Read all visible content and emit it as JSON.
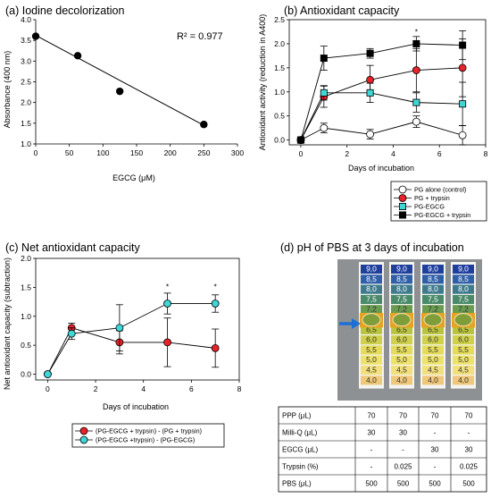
{
  "colors": {
    "red": "#e8222a",
    "cyan": "#3fd6d6",
    "black": "#000000",
    "white": "#ffffff"
  },
  "chart_data": [
    {
      "id": "a",
      "type": "scatter",
      "title": "(a) Iodine decolorization",
      "xlabel": "EGCG (μM)",
      "ylabel": "Absorbance (400 nm)",
      "xlim": [
        0,
        300
      ],
      "ylim": [
        1.0,
        4.0
      ],
      "xticks": [
        "0",
        "50",
        "100",
        "150",
        "200",
        "250",
        "300"
      ],
      "yticks": [
        "1.0",
        "1.5",
        "2.0",
        "2.5",
        "3.0",
        "3.5",
        "4.0"
      ],
      "annotation": "R² = 0.977",
      "points": [
        {
          "x": 0,
          "y": 3.6
        },
        {
          "x": 62.5,
          "y": 3.13
        },
        {
          "x": 125,
          "y": 2.27
        },
        {
          "x": 250,
          "y": 1.47
        }
      ],
      "fit": [
        {
          "x": 0,
          "y": 3.62
        },
        {
          "x": 250,
          "y": 1.45
        }
      ]
    },
    {
      "id": "b",
      "type": "line",
      "title": "(b) Antioxidant capacity",
      "xlabel": "Days of incubation",
      "ylabel": "Antioxidant activity (reduction in A400)",
      "xlim": [
        -0.5,
        8
      ],
      "ylim": [
        -0.1,
        2.5
      ],
      "xticks": [
        "0",
        "2",
        "4",
        "6",
        "8"
      ],
      "yticks": [
        "0.0",
        "0.5",
        "1.0",
        "1.5",
        "2.0",
        "2.5"
      ],
      "x": [
        0,
        1,
        3,
        5,
        7
      ],
      "annotations": [
        {
          "text": "*",
          "x": 5,
          "y": 2.27
        }
      ],
      "series": [
        {
          "name": "PG alone (control)",
          "marker": "circle",
          "fill": "#ffffff",
          "values": [
            0,
            0.25,
            0.12,
            0.38,
            0.1
          ],
          "errors": [
            0,
            0.1,
            0.1,
            0.12,
            0.2
          ]
        },
        {
          "name": "PG + trypsin",
          "marker": "circle",
          "fill": "#e8222a",
          "values": [
            0,
            0.9,
            1.25,
            1.45,
            1.5
          ],
          "errors": [
            0,
            0.22,
            0.3,
            0.45,
            0.6
          ]
        },
        {
          "name": "PG-EGCG",
          "marker": "square",
          "fill": "#3fd6d6",
          "values": [
            0,
            0.98,
            0.98,
            0.78,
            0.75
          ],
          "errors": [
            0,
            0.15,
            0.2,
            0.2,
            0.45
          ]
        },
        {
          "name": "PG-EGCG + trypsin",
          "marker": "square",
          "fill": "#000000",
          "values": [
            0,
            1.7,
            1.8,
            2.0,
            1.97
          ],
          "errors": [
            0,
            0.25,
            0.1,
            0.15,
            0.3
          ]
        }
      ]
    },
    {
      "id": "c",
      "type": "line",
      "title": "(c) Net antioxidant capacity",
      "xlabel": "Days of incubation",
      "ylabel": "Net antioxidant capacity (subtraction)",
      "xlim": [
        -0.5,
        8
      ],
      "ylim": [
        -0.1,
        2.0
      ],
      "xticks": [
        "0",
        "2",
        "4",
        "6",
        "8"
      ],
      "yticks": [
        "0.0",
        "0.5",
        "1.0",
        "1.5",
        "2.0"
      ],
      "x": [
        0,
        1,
        3,
        5,
        7
      ],
      "annotations": [
        {
          "text": "*",
          "x": 5,
          "y": 1.53
        },
        {
          "text": "*",
          "x": 7,
          "y": 1.53
        }
      ],
      "series": [
        {
          "name": "(PG-EGCG + trypsin) - (PG + trypsin)",
          "marker": "circle",
          "fill": "#e8222a",
          "values": [
            0,
            0.8,
            0.55,
            0.55,
            0.45
          ],
          "errors": [
            0,
            0.08,
            0.2,
            0.42,
            0.33
          ]
        },
        {
          "name": "(PG-EGCG +trypsin) - (PG-EGCG)",
          "marker": "circle",
          "fill": "#3fd6d6",
          "values": [
            0,
            0.7,
            0.8,
            1.22,
            1.22
          ],
          "errors": [
            0,
            0.1,
            0.4,
            0.18,
            0.15
          ]
        }
      ]
    }
  ],
  "panel_d": {
    "title": "(d) pH of PBS at 3 days of incubation",
    "ph_scale": [
      "9,0",
      "8,5",
      "8,0",
      "7,5",
      "7,2",
      "7,0",
      "6,5",
      "6,0",
      "5,5",
      "5,0",
      "4,5",
      "4,0"
    ],
    "ph_colors": [
      "#1f3f9e",
      "#2f5fa8",
      "#3e7a8c",
      "#4a8a6a",
      "#6a9c50",
      "#7ea53a",
      "#b9c43c",
      "#cfd14a",
      "#e4dc5a",
      "#eee36a",
      "#f1e07c",
      "#f0c87a"
    ],
    "table": {
      "rows": [
        {
          "label": "PPP  (μL)",
          "values": [
            "70",
            "70",
            "70",
            "70"
          ]
        },
        {
          "label": "Milli-Q  (μL)",
          "values": [
            "30",
            "30",
            "-",
            "-"
          ]
        },
        {
          "label": "EGCG  (μL)",
          "values": [
            "-",
            "-",
            "30",
            "30"
          ]
        },
        {
          "label": "Trypsin  (%)",
          "values": [
            "-",
            "0.025",
            "-",
            "0.025"
          ]
        },
        {
          "label": "PBS  (μL)",
          "values": [
            "500",
            "500",
            "500",
            "500"
          ]
        }
      ]
    }
  }
}
